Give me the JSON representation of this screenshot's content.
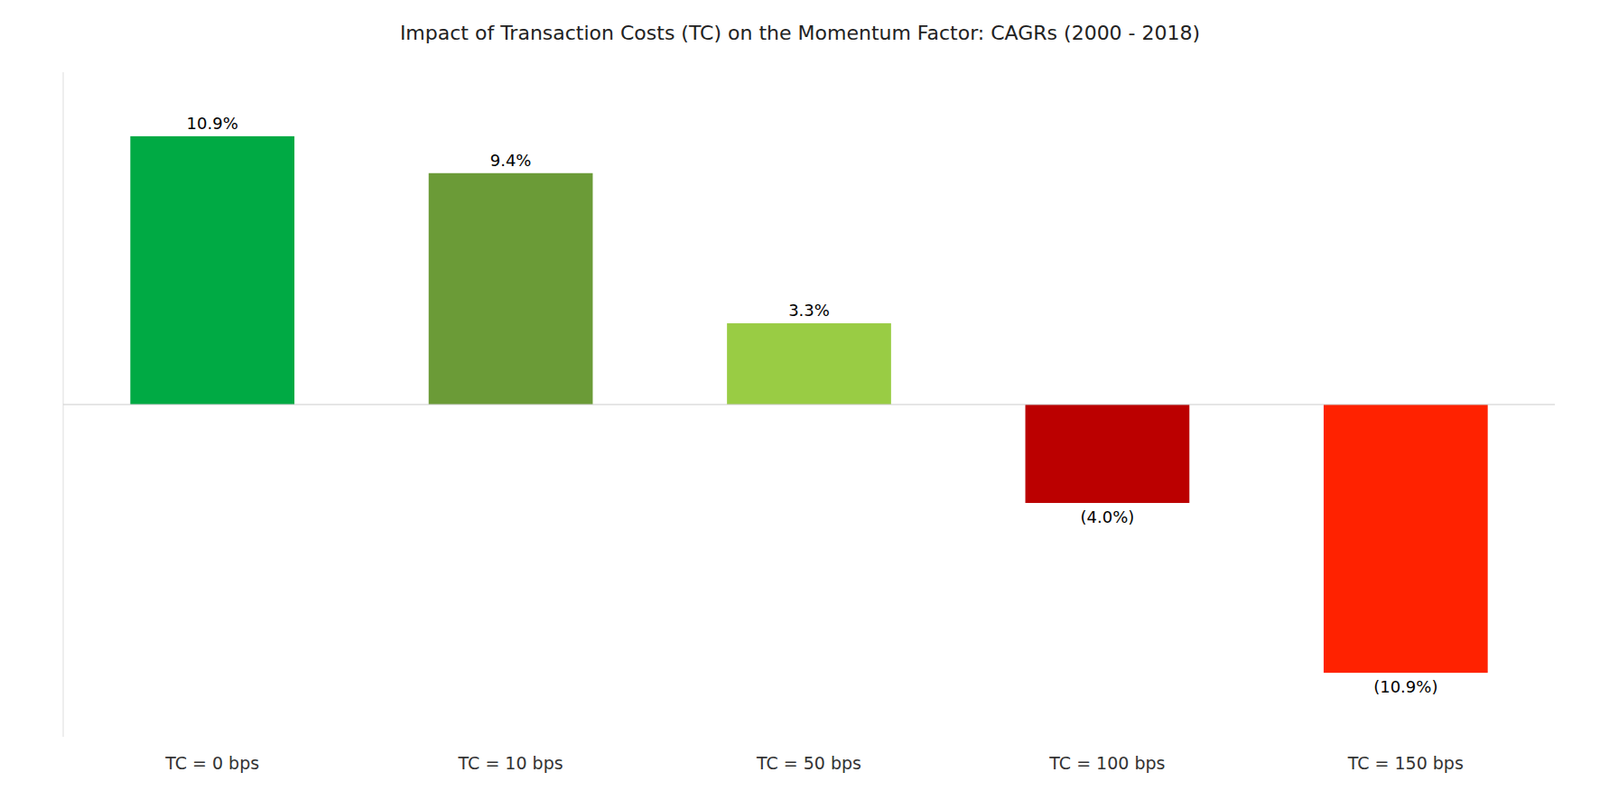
{
  "chart_data": {
    "type": "bar",
    "title": "Impact of Transaction Costs (TC) on the Momentum Factor: CAGRs (2000 - 2018)",
    "categories": [
      "TC = 0 bps",
      "TC = 10 bps",
      "TC = 50 bps",
      "TC = 100 bps",
      "TC = 150 bps"
    ],
    "values": [
      10.9,
      9.4,
      3.3,
      -4.0,
      -10.9
    ],
    "value_labels": [
      "10.9%",
      "9.4%",
      "3.3%",
      "(4.0%)",
      "(10.9%)"
    ],
    "colors": [
      "#00AA44",
      "#6B9B37",
      "#99CC44",
      "#BB0000",
      "#FF2200"
    ],
    "ylim": [
      -13.5,
      13.5
    ],
    "grid": false,
    "data_labels": true,
    "tick_labels": "x"
  }
}
